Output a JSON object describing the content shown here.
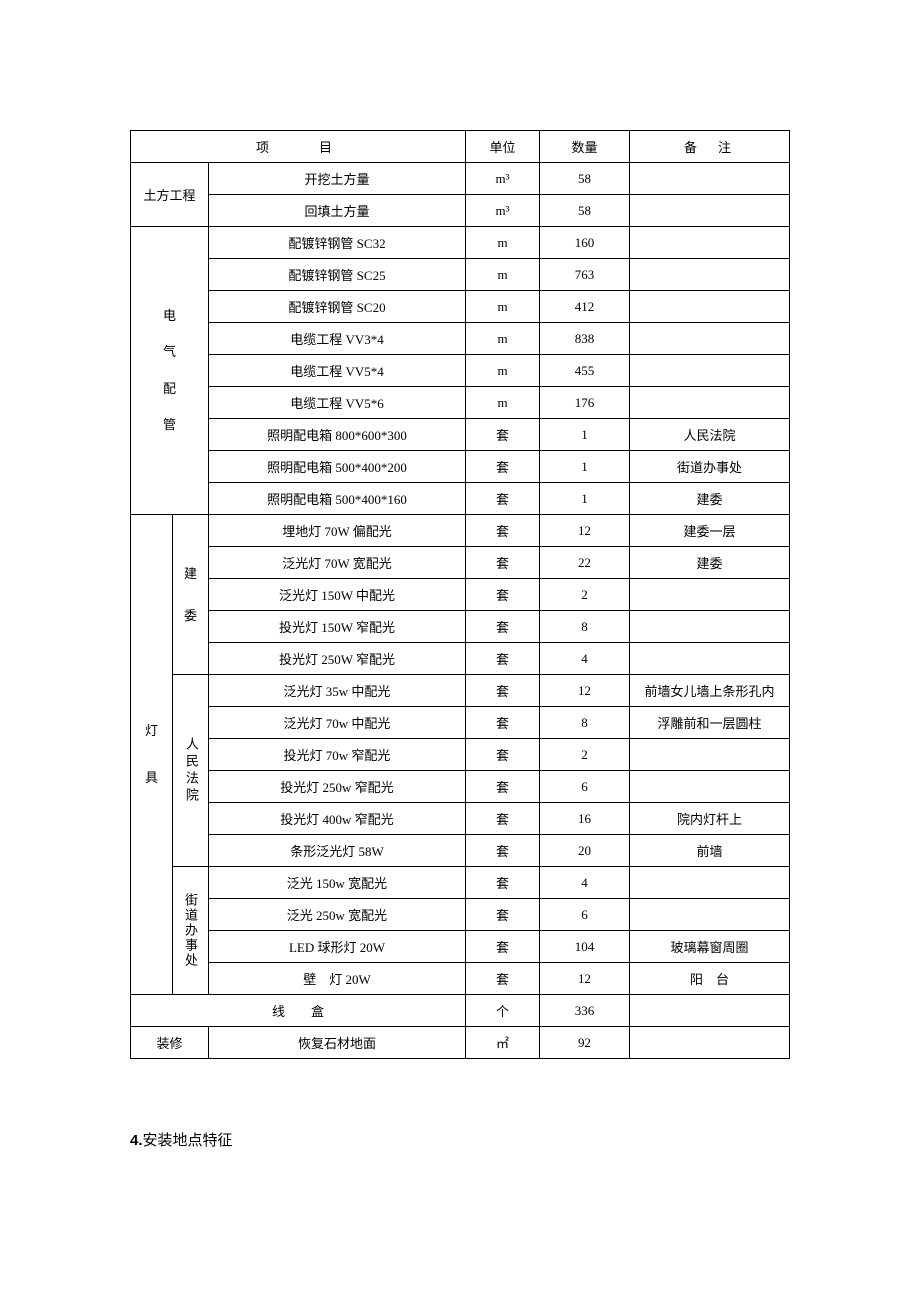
{
  "headers": {
    "item": "项　　目",
    "unit": "单位",
    "qty": "数量",
    "note": "备　注"
  },
  "groups": {
    "earthwork": "土方工程",
    "electrical_line1": "电",
    "electrical_line2": "气",
    "electrical_line3": "配",
    "electrical_line4": "管",
    "lamps_line1": "灯",
    "lamps_line2": "具",
    "jianwei_line1": "建",
    "jianwei_line2": "委",
    "court": "人民法院",
    "street": "街道办事处",
    "junction": "线　　盒",
    "finish": "装修"
  },
  "rows": {
    "r1": {
      "item": "开挖土方量",
      "unit": "m³",
      "qty": "58",
      "note": ""
    },
    "r2": {
      "item": "回填土方量",
      "unit": "m³",
      "qty": "58",
      "note": ""
    },
    "r3": {
      "item": "配镀锌钢管 SC32",
      "unit": "m",
      "qty": "160",
      "note": ""
    },
    "r4": {
      "item": "配镀锌钢管 SC25",
      "unit": "m",
      "qty": "763",
      "note": ""
    },
    "r5": {
      "item": "配镀锌钢管 SC20",
      "unit": "m",
      "qty": "412",
      "note": ""
    },
    "r6": {
      "item": "电缆工程 VV3*4",
      "unit": "m",
      "qty": "838",
      "note": ""
    },
    "r7": {
      "item": "电缆工程 VV5*4",
      "unit": "m",
      "qty": "455",
      "note": ""
    },
    "r8": {
      "item": "电缆工程 VV5*6",
      "unit": "m",
      "qty": "176",
      "note": ""
    },
    "r9": {
      "item": "照明配电箱 800*600*300",
      "unit": "套",
      "qty": "1",
      "note": "人民法院"
    },
    "r10": {
      "item": "照明配电箱 500*400*200",
      "unit": "套",
      "qty": "1",
      "note": "街道办事处"
    },
    "r11": {
      "item": "照明配电箱 500*400*160",
      "unit": "套",
      "qty": "1",
      "note": "建委"
    },
    "r12": {
      "item": "埋地灯 70W 偏配光",
      "unit": "套",
      "qty": "12",
      "note": "建委一层"
    },
    "r13": {
      "item": "泛光灯 70W 宽配光",
      "unit": "套",
      "qty": "22",
      "note": "建委"
    },
    "r14": {
      "item": "泛光灯 150W 中配光",
      "unit": "套",
      "qty": "2",
      "note": ""
    },
    "r15": {
      "item": "投光灯 150W 窄配光",
      "unit": "套",
      "qty": "8",
      "note": ""
    },
    "r16": {
      "item": "投光灯 250W 窄配光",
      "unit": "套",
      "qty": "4",
      "note": ""
    },
    "r17": {
      "item": "泛光灯 35w 中配光",
      "unit": "套",
      "qty": "12",
      "note": "前墙女儿墙上条形孔内"
    },
    "r18": {
      "item": "泛光灯 70w 中配光",
      "unit": "套",
      "qty": "8",
      "note": "浮雕前和一层圆柱"
    },
    "r19": {
      "item": "投光灯 70w 窄配光",
      "unit": "套",
      "qty": "2",
      "note": ""
    },
    "r20": {
      "item": "投光灯  250w 窄配光",
      "unit": "套",
      "qty": "6",
      "note": ""
    },
    "r21": {
      "item": "投光灯  400w 窄配光",
      "unit": "套",
      "qty": "16",
      "note": "院内灯杆上"
    },
    "r22": {
      "item": "条形泛光灯 58W",
      "unit": "套",
      "qty": "20",
      "note": "前墙"
    },
    "r23": {
      "item": "泛光 150w 宽配光",
      "unit": "套",
      "qty": "4",
      "note": ""
    },
    "r24": {
      "item": "泛光 250w 宽配光",
      "unit": "套",
      "qty": "6",
      "note": ""
    },
    "r25": {
      "item": "LED 球形灯  20W",
      "unit": "套",
      "qty": "104",
      "note": "玻璃幕窗周圈"
    },
    "r26": {
      "item": "壁　灯 20W",
      "unit": "套",
      "qty": "12",
      "note": "阳　台"
    },
    "r27": {
      "item": "",
      "unit": "个",
      "qty": "336",
      "note": ""
    },
    "r28": {
      "item": "恢复石材地面",
      "unit": "㎡",
      "qty": "92",
      "note": ""
    }
  },
  "section4": {
    "num": "4.",
    "title": "安装地点特征"
  }
}
